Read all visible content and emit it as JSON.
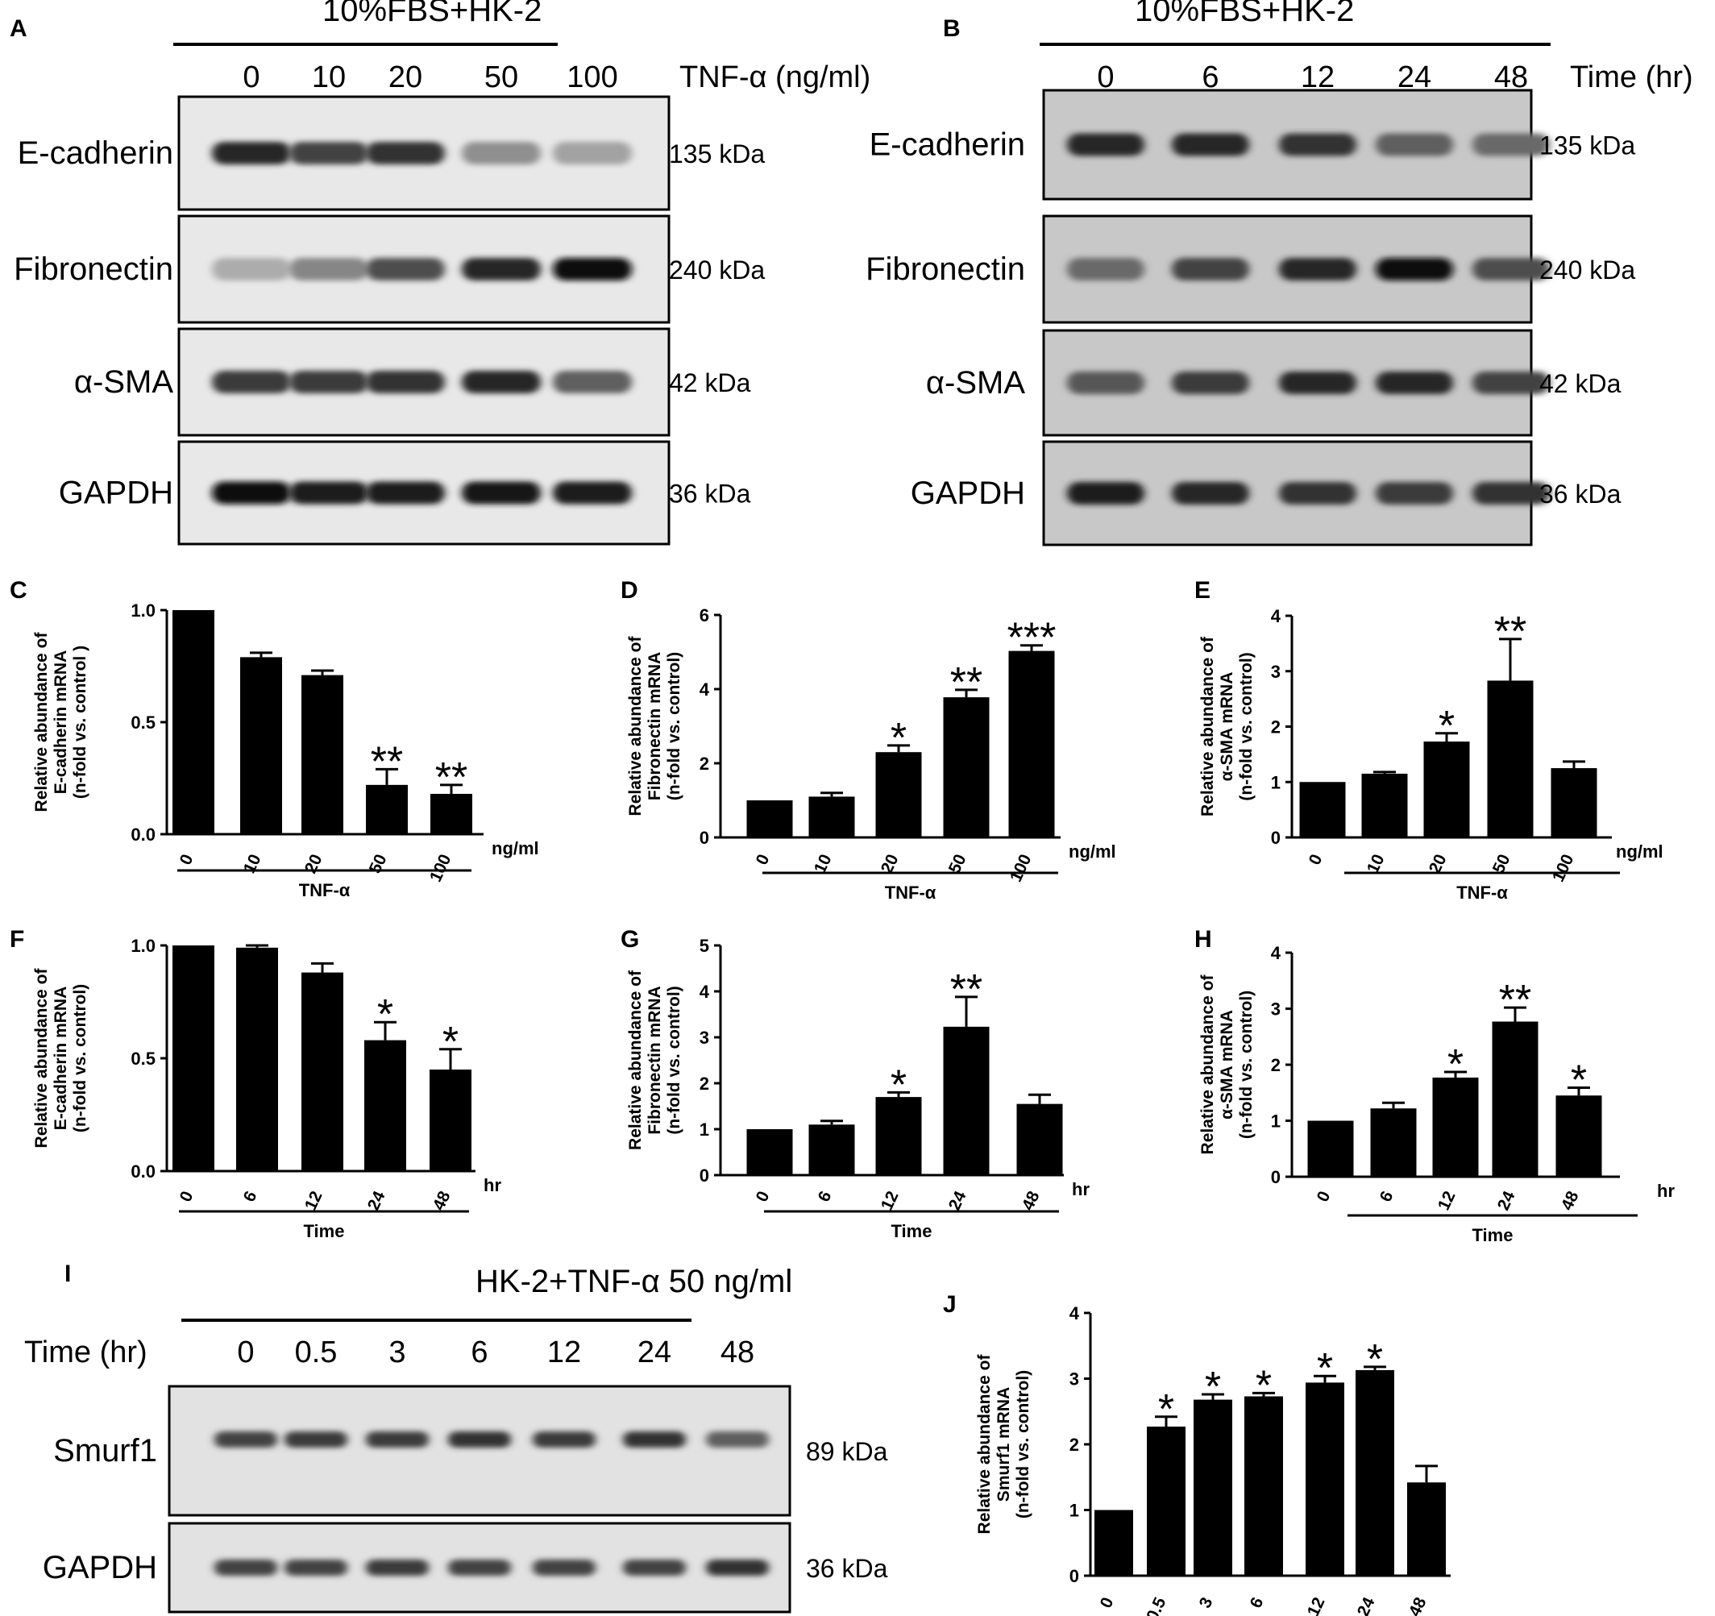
{
  "panels": {
    "A": {
      "letter": "A",
      "header": "10%FBS+HK-2",
      "condition_label": "TNF-α (ng/ml)",
      "conditions": [
        "0",
        "10",
        "20",
        "50",
        "100"
      ],
      "rows": [
        {
          "protein": "E-cadherin",
          "size": "135 kDa",
          "intensity": [
            0.85,
            0.7,
            0.8,
            0.3,
            0.2
          ]
        },
        {
          "protein": "Fibronectin",
          "size": "240 kDa",
          "intensity": [
            0.15,
            0.35,
            0.65,
            0.85,
            1.0
          ]
        },
        {
          "protein": "α-SMA",
          "size": "42 kDa",
          "intensity": [
            0.75,
            0.75,
            0.8,
            0.85,
            0.55
          ]
        },
        {
          "protein": "GAPDH",
          "size": "36 kDa",
          "intensity": [
            1.0,
            0.9,
            0.9,
            0.95,
            0.9
          ]
        }
      ]
    },
    "B": {
      "letter": "B",
      "header": "10%FBS+HK-2",
      "condition_label": "Time (hr)",
      "conditions": [
        "0",
        "6",
        "12",
        "24",
        "48"
      ],
      "rows": [
        {
          "protein": "E-cadherin",
          "size": "135 kDa",
          "intensity": [
            0.85,
            0.85,
            0.8,
            0.55,
            0.5
          ]
        },
        {
          "protein": "Fibronectin",
          "size": "240 kDa",
          "intensity": [
            0.5,
            0.7,
            0.85,
            1.0,
            0.65
          ]
        },
        {
          "protein": "α-SMA",
          "size": "42 kDa",
          "intensity": [
            0.6,
            0.75,
            0.85,
            0.85,
            0.7
          ]
        },
        {
          "protein": "GAPDH",
          "size": "36 kDa",
          "intensity": [
            0.9,
            0.85,
            0.8,
            0.75,
            0.8
          ]
        }
      ]
    },
    "I": {
      "letter": "I",
      "header": "HK-2+TNF-α 50 ng/ml",
      "condition_label": "Time (hr)",
      "conditions": [
        "0",
        "0.5",
        "3",
        "6",
        "12",
        "24",
        "48"
      ],
      "rows": [
        {
          "protein": "Smurf1",
          "size": "89 kDa",
          "intensity": [
            0.7,
            0.75,
            0.75,
            0.8,
            0.75,
            0.8,
            0.55
          ]
        },
        {
          "protein": "GAPDH",
          "size": "36 kDa",
          "intensity": [
            0.7,
            0.7,
            0.75,
            0.7,
            0.7,
            0.7,
            0.8
          ]
        }
      ]
    }
  },
  "chart_data": [
    {
      "id": "C",
      "type": "bar",
      "letter": "C",
      "ylabel": [
        "Relative abundance of",
        "E-cadherin mRNA",
        "(n-fold vs. control )"
      ],
      "categories": [
        "0",
        "10",
        "20",
        "50",
        "100"
      ],
      "unit": "ng/ml",
      "group_label": "TNF-α",
      "values": [
        1.0,
        0.79,
        0.71,
        0.22,
        0.18
      ],
      "errors": [
        0,
        0.02,
        0.02,
        0.07,
        0.04
      ],
      "significance": [
        "",
        "",
        "",
        "**",
        "**"
      ],
      "ylim": [
        0,
        1.0
      ],
      "yticks": [
        "0.0",
        "0.5",
        "1.0"
      ]
    },
    {
      "id": "D",
      "type": "bar",
      "letter": "D",
      "ylabel": [
        "Relative abundance of",
        "Fibronectin mRNA",
        "(n-fold vs. control)"
      ],
      "categories": [
        "0",
        "10",
        "20",
        "50",
        "100"
      ],
      "unit": "ng/ml",
      "group_label": "TNF-α",
      "values": [
        1.0,
        1.1,
        2.3,
        3.78,
        5.03
      ],
      "errors": [
        0,
        0.1,
        0.18,
        0.2,
        0.15
      ],
      "significance": [
        "",
        "",
        "*",
        "**",
        "***"
      ],
      "ylim": [
        0,
        6
      ],
      "yticks": [
        "0",
        "2",
        "4",
        "6"
      ]
    },
    {
      "id": "E",
      "type": "bar",
      "letter": "E",
      "ylabel": [
        "Relative abundance of",
        "α-SMA mRNA",
        "(n-fold vs. control)"
      ],
      "categories": [
        "0",
        "10",
        "20",
        "50",
        "100"
      ],
      "unit": "ng/ml",
      "group_label": "TNF-α",
      "values": [
        1.0,
        1.15,
        1.73,
        2.83,
        1.25
      ],
      "errors": [
        0,
        0.03,
        0.15,
        0.75,
        0.12
      ],
      "significance": [
        "",
        "",
        "*",
        "**",
        ""
      ],
      "ylim": [
        0,
        4
      ],
      "yticks": [
        "0",
        "1",
        "2",
        "3",
        "4"
      ]
    },
    {
      "id": "F",
      "type": "bar",
      "letter": "F",
      "ylabel": [
        "Relative abundance of",
        "E-cadherin mRNA",
        "(n-fold vs. control)"
      ],
      "categories": [
        "0",
        "6",
        "12",
        "24",
        "48"
      ],
      "unit": "hr",
      "group_label": "Time",
      "values": [
        1.0,
        0.99,
        0.88,
        0.58,
        0.45
      ],
      "errors": [
        0,
        0.01,
        0.04,
        0.08,
        0.09
      ],
      "significance": [
        "",
        "",
        "",
        "*",
        "*"
      ],
      "ylim": [
        0,
        1.0
      ],
      "yticks": [
        "0.0",
        "0.5",
        "1.0"
      ]
    },
    {
      "id": "G",
      "type": "bar",
      "letter": "G",
      "ylabel": [
        "Relative abundance of",
        "Fibronectin mRNA",
        "(n-fold vs. control)"
      ],
      "categories": [
        "0",
        "6",
        "12",
        "24",
        "48"
      ],
      "unit": "hr",
      "group_label": "Time",
      "values": [
        1.0,
        1.1,
        1.7,
        3.23,
        1.55
      ],
      "errors": [
        0,
        0.08,
        0.1,
        0.65,
        0.2
      ],
      "significance": [
        "",
        "",
        "*",
        "**",
        ""
      ],
      "ylim": [
        0,
        5
      ],
      "yticks": [
        "0",
        "1",
        "2",
        "3",
        "4",
        "5"
      ]
    },
    {
      "id": "H",
      "type": "bar",
      "letter": "H",
      "ylabel": [
        "Relative abundance of",
        "α-SMA mRNA",
        "(n-fold vs. control)"
      ],
      "categories": [
        "0",
        "6",
        "12",
        "24",
        "48"
      ],
      "unit": "hr",
      "group_label": "Time",
      "values": [
        1.0,
        1.22,
        1.77,
        2.77,
        1.45
      ],
      "errors": [
        0,
        0.1,
        0.1,
        0.25,
        0.14
      ],
      "significance": [
        "",
        "",
        "*",
        "**",
        "*"
      ],
      "ylim": [
        0,
        4
      ],
      "yticks": [
        "0",
        "1",
        "2",
        "3",
        "4"
      ]
    },
    {
      "id": "J",
      "type": "bar",
      "letter": "J",
      "ylabel": [
        "Relative abundance of",
        "Smurf1 mRNA",
        "(n-fold vs. control)"
      ],
      "categories": [
        "0",
        "0.5",
        "3",
        "6",
        "12",
        "24",
        "48"
      ],
      "unit": "",
      "group_label": "",
      "values": [
        1.0,
        2.27,
        2.68,
        2.73,
        2.94,
        3.13,
        1.42
      ],
      "errors": [
        0,
        0.15,
        0.08,
        0.05,
        0.1,
        0.05,
        0.25
      ],
      "significance": [
        "",
        "*",
        "*",
        "*",
        "*",
        "*",
        ""
      ],
      "ylim": [
        0,
        4
      ],
      "yticks": [
        "0",
        "1",
        "2",
        "3",
        "4"
      ]
    }
  ]
}
